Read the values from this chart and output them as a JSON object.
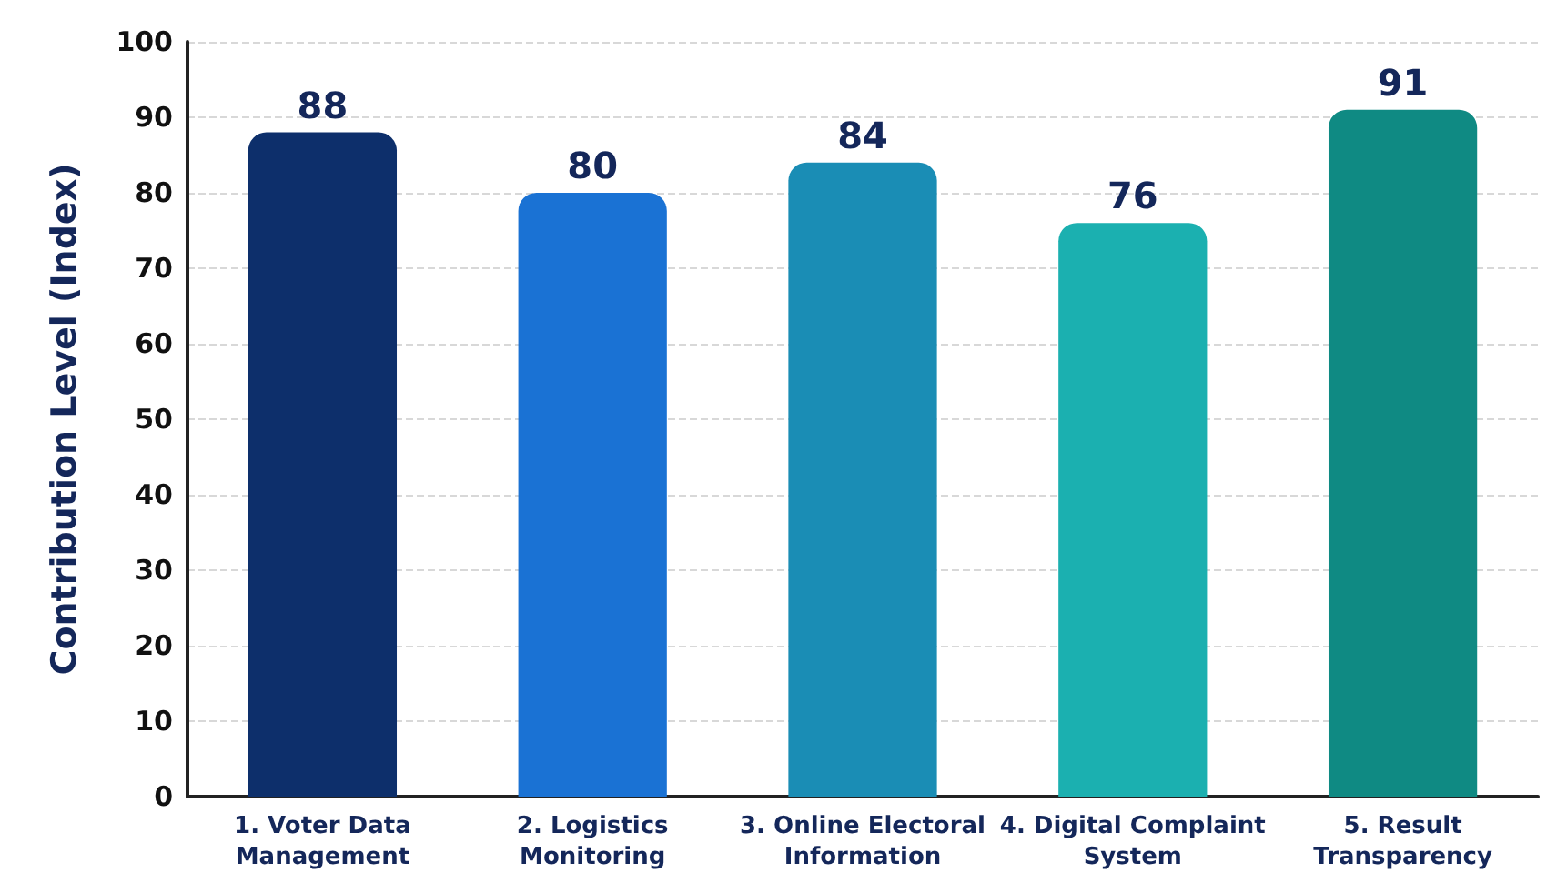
{
  "chart_data": {
    "type": "bar",
    "ylabel": "Contribution Level (Index)",
    "categories": [
      "1. Voter Data\nManagement",
      "2. Logistics\nMonitoring",
      "3. Online Electoral\nInformation",
      "4. Digital Complaint\nSystem",
      "5. Result\nTransparency"
    ],
    "values": [
      88,
      80,
      84,
      76,
      91
    ],
    "colors": [
      "#0d2f6b",
      "#1a72d4",
      "#1a8db5",
      "#1bb0b0",
      "#0f8a83"
    ],
    "ylim": [
      0,
      100
    ],
    "yticks": [
      0,
      10,
      20,
      30,
      40,
      50,
      60,
      70,
      80,
      90,
      100
    ],
    "grid": "y",
    "data_labels": true
  }
}
